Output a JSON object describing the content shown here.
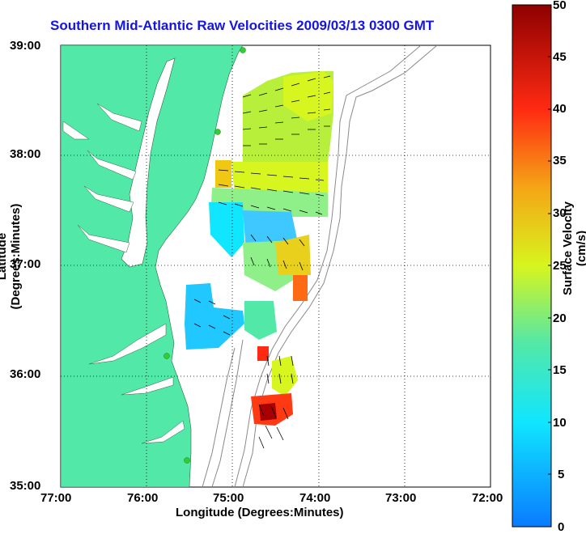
{
  "title": "Southern Mid-Atlantic Raw Velocities 2009/03/13 0300 GMT",
  "x_axis_label": "Longitude (Degrees:Minutes)",
  "y_axis_label": "Latitude (Degrees:Minutes)",
  "x_ticks": [
    "77:00",
    "76:00",
    "75:00",
    "74:00",
    "73:00",
    "72:00"
  ],
  "y_ticks": [
    "39:00",
    "38:00",
    "37:00",
    "36:00",
    "35:00"
  ],
  "colorbar": {
    "label": "Surface Velocity (cm/s)",
    "ticks": [
      "50",
      "45",
      "40",
      "35",
      "30",
      "25",
      "20",
      "15",
      "10",
      "5",
      "0"
    ],
    "min": 0,
    "max": 50
  },
  "colors": {
    "land": "#52e8a8",
    "water": "#ffffff",
    "title": "#1414e6",
    "station": "#33cc33"
  }
}
